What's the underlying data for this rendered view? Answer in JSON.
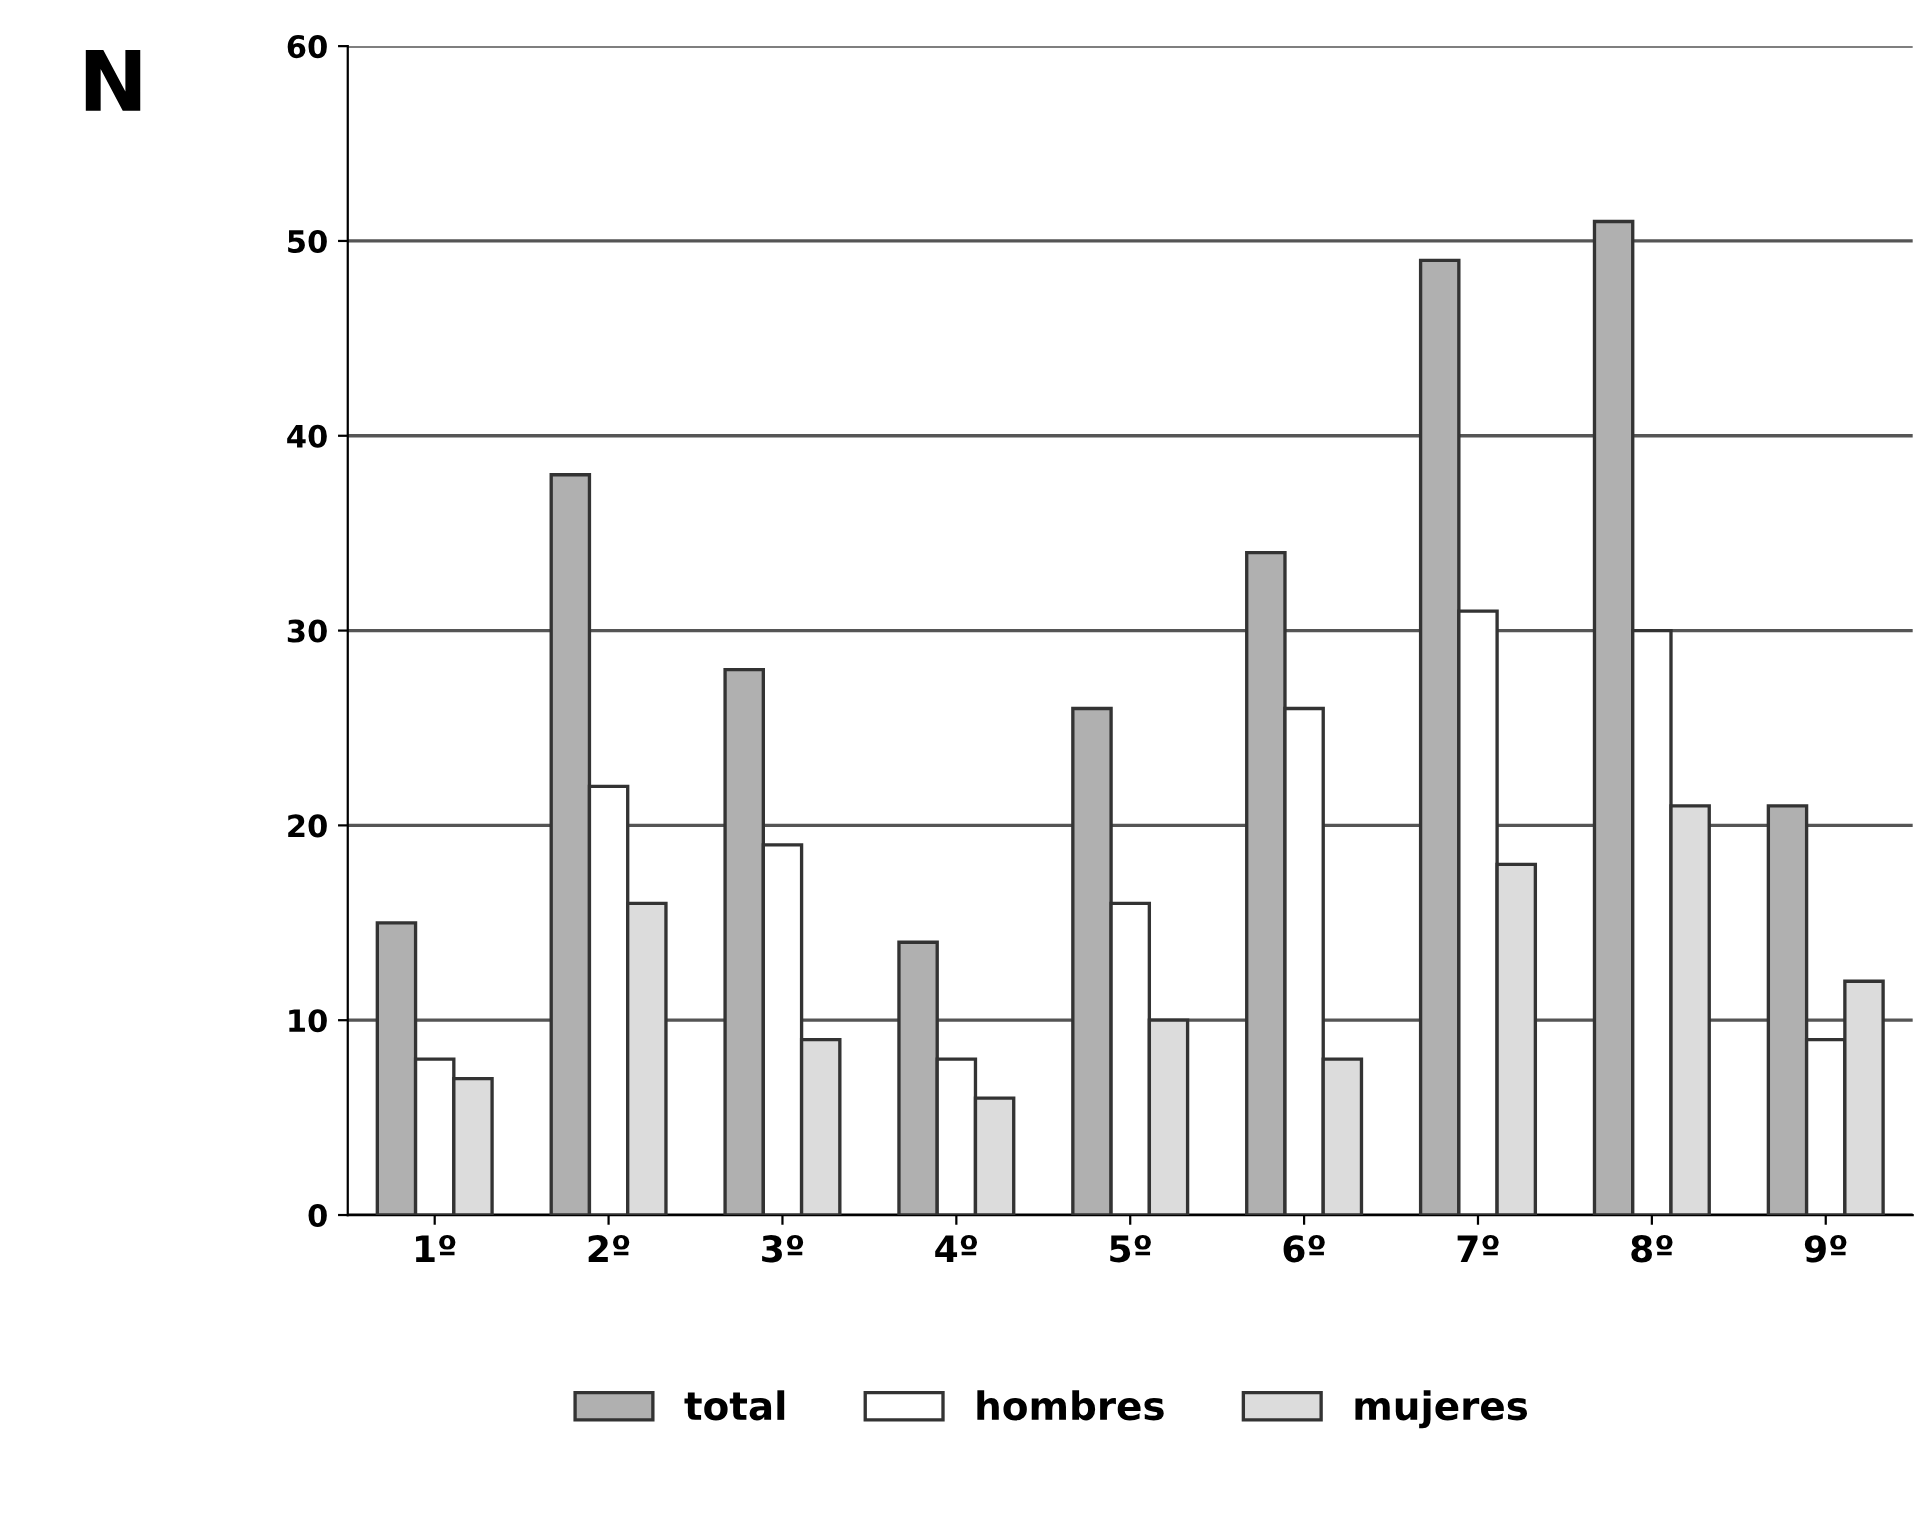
{
  "chart_data": {
    "type": "bar",
    "ylabel": "N",
    "categories": [
      "1º",
      "2º",
      "3º",
      "4º",
      "5º",
      "6º",
      "7º",
      "8º",
      "9º"
    ],
    "series": [
      {
        "name": "total",
        "color": "#b0b0b0",
        "values": [
          15,
          38,
          28,
          14,
          26,
          34,
          49,
          51,
          21
        ]
      },
      {
        "name": "hombres",
        "color": "#ffffff",
        "values": [
          8,
          22,
          19,
          8,
          16,
          26,
          31,
          30,
          9
        ]
      },
      {
        "name": "mujeres",
        "color": "#dcdcdc",
        "values": [
          7,
          16,
          9,
          6,
          10,
          8,
          18,
          21,
          12
        ]
      }
    ],
    "ylim": [
      0,
      60
    ],
    "yticks": [
      0,
      10,
      20,
      30,
      40,
      50,
      60
    ],
    "grid": "y",
    "legend": "bottom"
  }
}
